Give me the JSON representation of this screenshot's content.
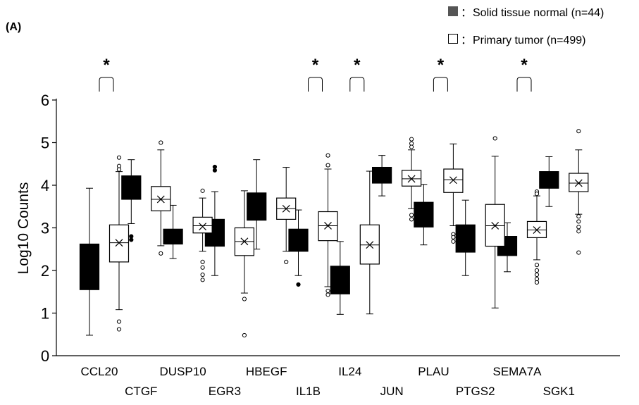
{
  "panel_label": "(A)",
  "legend": [
    {
      "symbol": "■",
      "separator": "：",
      "label": "Solid tissue normal (n=44)"
    },
    {
      "symbol": "□",
      "separator": "：",
      "label": "Primary tumor (n=499)"
    }
  ],
  "significance_marker": "*",
  "chart_data": {
    "type": "boxplot",
    "ylabel": "Log10 Counts",
    "ylim": [
      0,
      6
    ],
    "yticks": [
      "0",
      "1",
      "2",
      "3",
      "4",
      "5",
      "6"
    ],
    "grid": false,
    "legend_position": "top-right",
    "categories": [
      "CCL20",
      "CTGF",
      "DUSP10",
      "EGR3",
      "HBEGF",
      "IL1B",
      "IL24",
      "JUN",
      "PLAU",
      "PTGS2",
      "SEMA7A",
      "SGK1"
    ],
    "significant": [
      "CCL20",
      "IL1B",
      "IL24",
      "PLAU",
      "SEMA7A"
    ],
    "series": [
      {
        "name": "Solid tissue normal (n=44)",
        "color": "#000000",
        "boxes": [
          {
            "category": "CCL20",
            "whisker_low": 0.48,
            "q1": 1.55,
            "median": 2.12,
            "q3": 2.62,
            "whisker_high": 3.93,
            "mean": null,
            "outliers": []
          },
          {
            "category": "CTGF",
            "whisker_low": 3.1,
            "q1": 3.67,
            "median": 3.9,
            "q3": 4.22,
            "whisker_high": 4.6,
            "mean": null,
            "outliers": [
              2.8,
              2.72
            ]
          },
          {
            "category": "DUSP10",
            "whisker_low": 2.28,
            "q1": 2.62,
            "median": 2.8,
            "q3": 2.97,
            "whisker_high": 3.53,
            "mean": null,
            "outliers": []
          },
          {
            "category": "EGR3",
            "whisker_low": 1.88,
            "q1": 2.57,
            "median": 2.87,
            "q3": 3.2,
            "whisker_high": 3.85,
            "mean": null,
            "outliers": [
              4.43,
              4.35
            ]
          },
          {
            "category": "HBEGF",
            "whisker_low": 2.5,
            "q1": 3.18,
            "median": 3.5,
            "q3": 3.82,
            "whisker_high": 4.6,
            "mean": null,
            "outliers": []
          },
          {
            "category": "IL1B",
            "whisker_low": 1.88,
            "q1": 2.45,
            "median": 2.72,
            "q3": 2.97,
            "whisker_high": 3.42,
            "mean": null,
            "outliers": [
              1.67
            ]
          },
          {
            "category": "IL24",
            "whisker_low": 0.97,
            "q1": 1.45,
            "median": 1.78,
            "q3": 2.1,
            "whisker_high": 2.68,
            "mean": null,
            "outliers": []
          },
          {
            "category": "JUN",
            "whisker_low": 3.75,
            "q1": 4.05,
            "median": 4.22,
            "q3": 4.42,
            "whisker_high": 4.7,
            "mean": null,
            "outliers": []
          },
          {
            "category": "PLAU",
            "whisker_low": 2.6,
            "q1": 3.02,
            "median": 3.28,
            "q3": 3.6,
            "whisker_high": 4.02,
            "mean": null,
            "outliers": []
          },
          {
            "category": "PTGS2",
            "whisker_low": 1.88,
            "q1": 2.43,
            "median": 2.75,
            "q3": 3.07,
            "whisker_high": 3.65,
            "mean": null,
            "outliers": []
          },
          {
            "category": "SEMA7A",
            "whisker_low": 1.97,
            "q1": 2.35,
            "median": 2.55,
            "q3": 2.8,
            "whisker_high": 3.12,
            "mean": null,
            "outliers": []
          },
          {
            "category": "SGK1",
            "whisker_low": 3.5,
            "q1": 3.93,
            "median": 4.1,
            "q3": 4.32,
            "whisker_high": 4.67,
            "mean": null,
            "outliers": []
          }
        ]
      },
      {
        "name": "Primary tumor (n=499)",
        "color": "#ffffff",
        "boxes": [
          {
            "category": "CCL20",
            "whisker_low": 1.08,
            "q1": 2.2,
            "median": 2.65,
            "q3": 3.07,
            "whisker_high": 4.32,
            "mean": 2.65,
            "outliers": [
              4.65,
              4.45,
              4.37,
              0.8,
              0.62
            ]
          },
          {
            "category": "CTGF",
            "whisker_low": 2.58,
            "q1": 3.4,
            "median": 3.67,
            "q3": 3.97,
            "whisker_high": 4.83,
            "mean": 3.67,
            "outliers": [
              5.0,
              2.4
            ]
          },
          {
            "category": "DUSP10",
            "whisker_low": 2.45,
            "q1": 2.88,
            "median": 3.05,
            "q3": 3.25,
            "whisker_high": 3.7,
            "mean": 3.03,
            "outliers": [
              3.87,
              2.2,
              2.07,
              1.9,
              1.78
            ]
          },
          {
            "category": "EGR3",
            "whisker_low": 1.47,
            "q1": 2.35,
            "median": 2.68,
            "q3": 3.0,
            "whisker_high": 3.87,
            "mean": 2.68,
            "outliers": [
              1.33,
              0.48
            ]
          },
          {
            "category": "HBEGF",
            "whisker_low": 2.45,
            "q1": 3.2,
            "median": 3.45,
            "q3": 3.7,
            "whisker_high": 4.42,
            "mean": 3.45,
            "outliers": [
              2.2
            ]
          },
          {
            "category": "IL1B",
            "whisker_low": 1.62,
            "q1": 2.7,
            "median": 3.05,
            "q3": 3.38,
            "whisker_high": 4.38,
            "mean": 3.05,
            "outliers": [
              4.7,
              4.47,
              1.52,
              1.43
            ]
          },
          {
            "category": "IL24",
            "whisker_low": 0.98,
            "q1": 2.15,
            "median": 2.6,
            "q3": 3.07,
            "whisker_high": 4.33,
            "mean": 2.6,
            "outliers": []
          },
          {
            "category": "JUN",
            "whisker_low": 3.45,
            "q1": 3.98,
            "median": 4.15,
            "q3": 4.35,
            "whisker_high": 4.83,
            "mean": 4.15,
            "outliers": [
              5.08,
              4.98,
              4.9,
              3.3,
              3.2
            ]
          },
          {
            "category": "PLAU",
            "whisker_low": 3.05,
            "q1": 3.83,
            "median": 4.13,
            "q3": 4.38,
            "whisker_high": 4.97,
            "mean": 4.12,
            "outliers": [
              2.85,
              2.78,
              2.68
            ]
          },
          {
            "category": "PTGS2",
            "whisker_low": 1.12,
            "q1": 2.57,
            "median": 3.05,
            "q3": 3.55,
            "whisker_high": 4.68,
            "mean": 3.05,
            "outliers": [
              5.1
            ]
          },
          {
            "category": "SEMA7A",
            "whisker_low": 2.25,
            "q1": 2.77,
            "median": 2.95,
            "q3": 3.15,
            "whisker_high": 3.75,
            "mean": 2.95,
            "outliers": [
              3.85,
              3.8,
              2.13,
              2.0,
              1.9,
              1.8,
              1.72
            ]
          },
          {
            "category": "SGK1",
            "whisker_low": 3.32,
            "q1": 3.85,
            "median": 4.05,
            "q3": 4.28,
            "whisker_high": 4.83,
            "mean": 4.05,
            "outliers": [
              5.27,
              3.27,
              3.15,
              3.02,
              2.92,
              2.42
            ]
          }
        ]
      }
    ]
  }
}
